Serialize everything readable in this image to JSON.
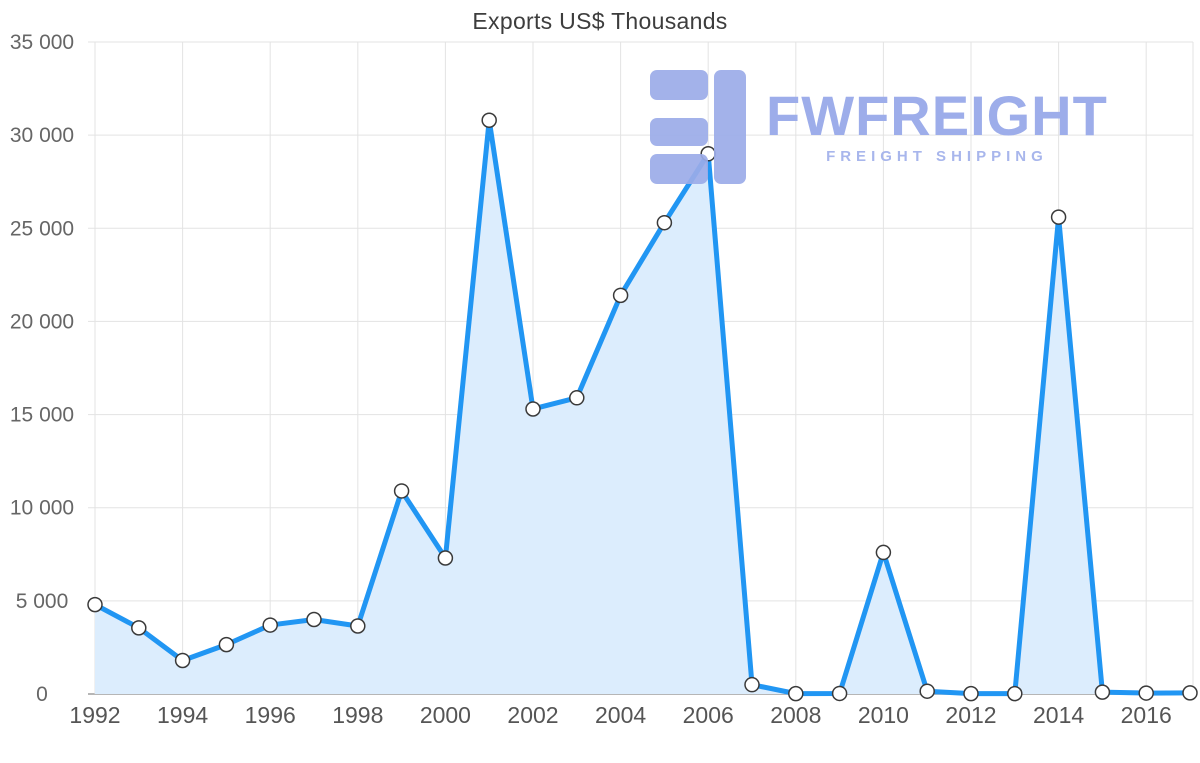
{
  "title": "Exports US$ Thousands",
  "logo": {
    "name": "FWFREIGHT",
    "tagline": "FREIGHT SHIPPING",
    "color": "#9dadea"
  },
  "chart_data": {
    "type": "area",
    "title": "Exports US$ Thousands",
    "xlabel": "",
    "ylabel": "",
    "x": [
      1992,
      1993,
      1994,
      1995,
      1996,
      1997,
      1998,
      1999,
      2000,
      2001,
      2002,
      2003,
      2004,
      2005,
      2006,
      2007,
      2008,
      2009,
      2010,
      2011,
      2012,
      2013,
      2014,
      2015,
      2016,
      2017
    ],
    "values": [
      4800,
      3550,
      1800,
      2650,
      3700,
      4000,
      3650,
      10900,
      7300,
      30800,
      15300,
      15900,
      21400,
      25300,
      29000,
      500,
      20,
      30,
      7600,
      150,
      20,
      20,
      25600,
      100,
      50,
      60
    ],
    "xlim": [
      1992,
      2017
    ],
    "ylim": [
      0,
      35000
    ],
    "x_ticks": [
      1992,
      1994,
      1996,
      1998,
      2000,
      2002,
      2004,
      2006,
      2008,
      2010,
      2012,
      2014,
      2016
    ],
    "x_tick_labels": [
      "1992",
      "1994",
      "1996",
      "1998",
      "2000",
      "2002",
      "2004",
      "2006",
      "2008",
      "2010",
      "2012",
      "2014",
      "2016"
    ],
    "y_ticks": [
      0,
      5000,
      10000,
      15000,
      20000,
      25000,
      30000,
      35000
    ],
    "y_tick_labels": [
      "0",
      "5 000",
      "10 000",
      "15 000",
      "20 000",
      "25 000",
      "30 000",
      "35 000"
    ],
    "grid": true,
    "legend": "none",
    "line_color": "#2196f3",
    "area_color": "#dcedfd",
    "marker_fill": "#ffffff",
    "marker_stroke": "#3a3a3a",
    "grid_color": "#e3e3e3",
    "axis_line_color": "#9e9e9e",
    "x_label_color": "#555555",
    "y_label_color": "#666666"
  }
}
